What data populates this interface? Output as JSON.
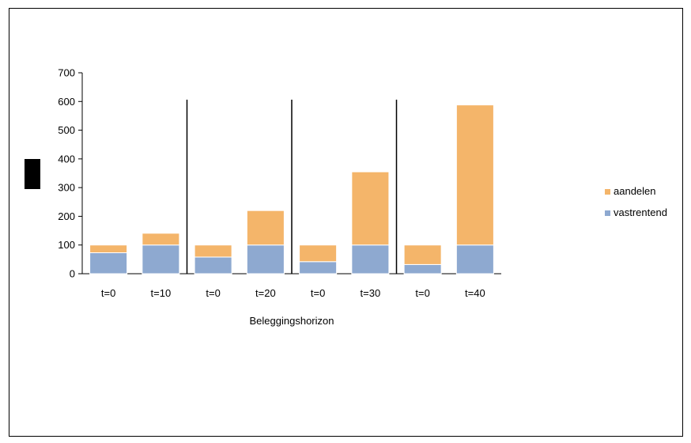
{
  "chart_data": {
    "type": "bar",
    "stacked": true,
    "xlabel": "Beleggingshorizon",
    "ylabel": "",
    "ylim": [
      0,
      700
    ],
    "yticks": [
      0,
      100,
      200,
      300,
      400,
      500,
      600,
      700
    ],
    "categories": [
      "t=0",
      "t=10",
      "t=0",
      "t=20",
      "t=0",
      "t=30",
      "t=0",
      "t=40"
    ],
    "series": [
      {
        "name": "vastrentend",
        "color": "#8ea9d0",
        "values": [
          73,
          100,
          58,
          100,
          42,
          100,
          32,
          100
        ]
      },
      {
        "name": "aandelen",
        "color": "#f4b56a",
        "values": [
          27,
          41,
          42,
          120,
          58,
          255,
          68,
          488
        ]
      }
    ],
    "separators_after_category": [
      1,
      3,
      5
    ],
    "legend": {
      "position": "right",
      "order": [
        "aandelen",
        "vastrentend"
      ]
    },
    "grid": false,
    "redaction_color": "#000000"
  }
}
